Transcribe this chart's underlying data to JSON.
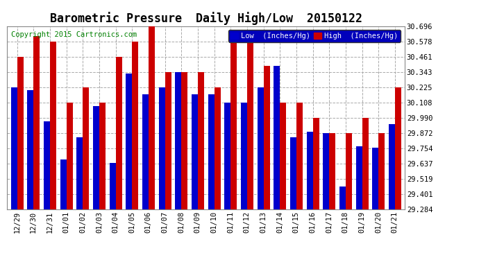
{
  "title": "Barometric Pressure  Daily High/Low  20150122",
  "copyright": "Copyright 2015 Cartronics.com",
  "categories": [
    "12/29",
    "12/30",
    "12/31",
    "01/01",
    "01/02",
    "01/03",
    "01/04",
    "01/05",
    "01/06",
    "01/07",
    "01/08",
    "01/09",
    "01/10",
    "01/11",
    "01/12",
    "01/13",
    "01/14",
    "01/15",
    "01/16",
    "01/17",
    "01/18",
    "01/19",
    "01/20",
    "01/21"
  ],
  "low_values": [
    30.225,
    30.2,
    29.96,
    29.67,
    29.84,
    30.08,
    29.64,
    30.33,
    30.17,
    30.225,
    30.343,
    30.17,
    30.17,
    30.108,
    30.108,
    30.225,
    30.39,
    29.84,
    29.88,
    29.87,
    29.46,
    29.77,
    29.76,
    29.94
  ],
  "high_values": [
    30.461,
    30.62,
    30.578,
    30.108,
    30.225,
    30.108,
    30.461,
    30.578,
    30.696,
    30.343,
    30.343,
    30.343,
    30.225,
    30.62,
    30.66,
    30.39,
    30.108,
    30.108,
    29.99,
    29.872,
    29.872,
    29.99,
    29.872,
    30.225
  ],
  "low_color": "#0000cc",
  "high_color": "#cc0000",
  "background_color": "#ffffff",
  "grid_color": "#aaaaaa",
  "ymin": 29.284,
  "ymax": 30.696,
  "yticks": [
    29.284,
    29.401,
    29.519,
    29.637,
    29.754,
    29.872,
    29.99,
    30.108,
    30.225,
    30.343,
    30.461,
    30.578,
    30.696
  ],
  "legend_low_label": "Low  (Inches/Hg)",
  "legend_high_label": "High  (Inches/Hg)",
  "title_fontsize": 12,
  "copyright_fontsize": 7.5
}
